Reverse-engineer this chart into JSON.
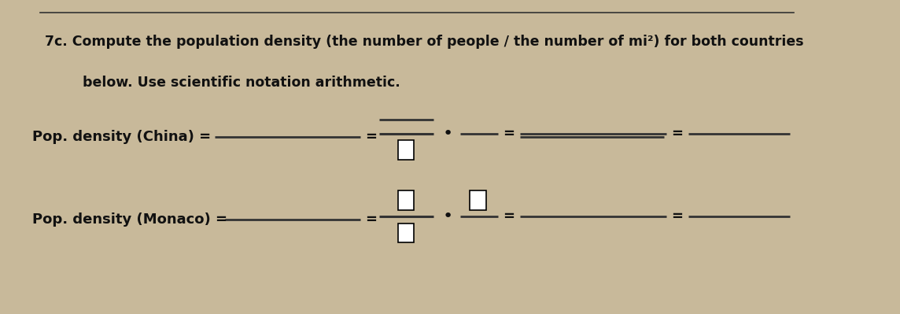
{
  "bg_color": "#c8b99a",
  "paper_color": "#f2efea",
  "title_line1": "7c. Compute the population density (the number of people / the number of mi²) for both countries",
  "title_line2": "        below. Use scientific notation arithmetic.",
  "china_label": "Pop. density (China) =",
  "monaco_label": "Pop. density (Monaco) =",
  "font_size_title": 12.5,
  "font_size_label": 13,
  "line_color": "#333333",
  "text_color": "#111111"
}
